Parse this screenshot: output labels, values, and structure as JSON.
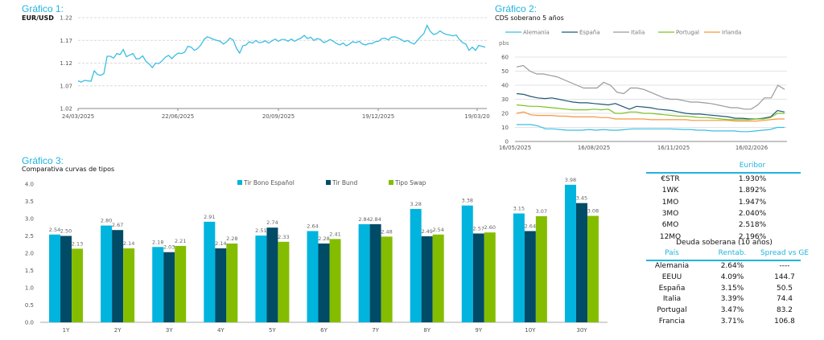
{
  "charts_meta": {
    "g1_title": "Gráfico 1:",
    "g1_subtitle": "EUR/USD",
    "g2_title": "Gráfico 2:",
    "g2_subtitle": "CDS soberano 5 años",
    "g3_title": "Gráfico 3:",
    "g3_subtitle": "Comparativa curvas de tipos"
  },
  "chart_data": [
    {
      "type": "line",
      "title": "EUR/USD",
      "xlabel": "",
      "ylabel": "",
      "ylim": [
        1.02,
        1.22
      ],
      "yticks": [
        "1.02",
        "1.07",
        "1.12",
        "1.17",
        "1.22"
      ],
      "xticks": [
        "24/03/2025",
        "22/06/2025",
        "20/09/2025",
        "19/12/2025",
        "19/03/20"
      ],
      "grid": true,
      "color": "#3bbde3",
      "series": [
        {
          "name": "EUR/USD",
          "x_range": [
            "24/03/2025",
            "25/03/2026"
          ],
          "values": [
            1.081,
            1.078,
            1.082,
            1.081,
            1.08,
            1.103,
            1.095,
            1.093,
            1.097,
            1.135,
            1.135,
            1.131,
            1.141,
            1.139,
            1.15,
            1.134,
            1.138,
            1.141,
            1.129,
            1.13,
            1.136,
            1.124,
            1.118,
            1.11,
            1.12,
            1.119,
            1.125,
            1.133,
            1.137,
            1.13,
            1.137,
            1.142,
            1.141,
            1.144,
            1.157,
            1.155,
            1.148,
            1.152,
            1.16,
            1.172,
            1.178,
            1.175,
            1.172,
            1.17,
            1.168,
            1.162,
            1.167,
            1.175,
            1.171,
            1.153,
            1.142,
            1.158,
            1.16,
            1.167,
            1.164,
            1.17,
            1.165,
            1.166,
            1.169,
            1.164,
            1.169,
            1.173,
            1.168,
            1.172,
            1.172,
            1.168,
            1.173,
            1.168,
            1.172,
            1.175,
            1.181,
            1.174,
            1.177,
            1.17,
            1.174,
            1.172,
            1.165,
            1.168,
            1.172,
            1.168,
            1.163,
            1.16,
            1.164,
            1.158,
            1.162,
            1.167,
            1.165,
            1.168,
            1.162,
            1.16,
            1.163,
            1.163,
            1.167,
            1.168,
            1.174,
            1.175,
            1.171,
            1.177,
            1.178,
            1.175,
            1.172,
            1.167,
            1.17,
            1.165,
            1.162,
            1.17,
            1.178,
            1.185,
            1.203,
            1.19,
            1.183,
            1.185,
            1.191,
            1.186,
            1.183,
            1.182,
            1.18,
            1.182,
            1.172,
            1.165,
            1.162,
            1.148,
            1.155,
            1.148,
            1.159,
            1.157,
            1.155
          ]
        }
      ]
    },
    {
      "type": "line",
      "title": "CDS soberano 5 años",
      "xlabel": "",
      "ylabel": "pbs",
      "ylim": [
        0,
        60
      ],
      "yticks": [
        "0",
        "10",
        "20",
        "30",
        "40",
        "50",
        "60"
      ],
      "xticks": [
        "16/05/2025",
        "16/08/2025",
        "16/11/2025",
        "16/02/2026"
      ],
      "grid": true,
      "legend": "top",
      "series": [
        {
          "name": "Alemania",
          "color": "#3bbde3",
          "values": [
            12,
            12,
            12,
            11,
            9,
            9,
            8.5,
            8,
            8,
            8,
            8.5,
            8,
            8.5,
            8,
            8,
            8.5,
            9,
            9,
            9,
            9,
            9,
            9,
            8.8,
            8.5,
            8.5,
            8,
            8,
            7.5,
            7.5,
            7.5,
            7.5,
            7,
            7,
            7.5,
            8,
            8.5,
            10,
            10
          ]
        },
        {
          "name": "España",
          "color": "#1f5a78",
          "values": [
            34,
            33.5,
            32,
            31,
            30.5,
            31,
            30,
            29,
            28,
            27.5,
            27.5,
            27,
            26.5,
            26,
            27,
            25,
            23,
            25,
            24.5,
            24,
            23,
            22.5,
            22,
            21,
            20,
            19.5,
            19.5,
            19,
            18.5,
            18,
            17.5,
            16.5,
            16.5,
            16,
            16,
            16.5,
            17.5,
            22,
            21
          ]
        },
        {
          "name": "Italia",
          "color": "#9a9a9a",
          "values": [
            53,
            54,
            50,
            48,
            48,
            47,
            46,
            44,
            42,
            40,
            38,
            38,
            38,
            42,
            40,
            35,
            34,
            38,
            38,
            37,
            35,
            33,
            31,
            30,
            30,
            29,
            28,
            28,
            27.5,
            27,
            26,
            25,
            24,
            24,
            23,
            23,
            26,
            31,
            31,
            40,
            37
          ]
        },
        {
          "name": "Portugal",
          "color": "#7cc225",
          "values": [
            26,
            25.5,
            25,
            25,
            24.5,
            24,
            23.5,
            23,
            22.5,
            22.5,
            22.5,
            23,
            22.5,
            23,
            20,
            20,
            21,
            21,
            20,
            20,
            19.5,
            19,
            18.5,
            18,
            18,
            17.5,
            17,
            17,
            16.5,
            16,
            15.5,
            15.5,
            15.5,
            15.5,
            16,
            16,
            17,
            20,
            20
          ]
        },
        {
          "name": "Irlanda",
          "color": "#f7963c",
          "values": [
            20,
            21,
            19,
            18.5,
            18.5,
            18.5,
            18,
            18,
            17.5,
            17.5,
            17.5,
            17.5,
            17,
            17,
            16,
            16,
            16,
            16,
            16,
            15.5,
            15.5,
            15.5,
            15.5,
            15.5,
            15.5,
            15,
            15,
            15,
            15,
            15,
            15,
            14.5,
            14.5,
            14.5,
            14.5,
            15,
            15.5,
            16,
            16
          ]
        }
      ]
    },
    {
      "type": "bar",
      "title": "Comparativa curvas de tipos",
      "xlabel": "",
      "ylabel": "",
      "ylim": [
        0,
        4.0
      ],
      "yticks": [
        "0.0",
        "0.5",
        "1.0",
        "1.5",
        "2.0",
        "2.5",
        "3.0",
        "3.5",
        "4.0"
      ],
      "legend": "top-center",
      "categories": [
        "1Y",
        "2Y",
        "3Y",
        "4Y",
        "5Y",
        "6Y",
        "7Y",
        "8Y",
        "9Y",
        "10Y",
        "30Y"
      ],
      "series": [
        {
          "name": "Tir Bono Español",
          "color": "#00b4de",
          "values": [
            2.54,
            2.8,
            2.18,
            2.91,
            2.51,
            2.64,
            2.84,
            3.28,
            3.38,
            3.15,
            3.98
          ]
        },
        {
          "name": "Tir Bund",
          "color": "#004b66",
          "values": [
            2.5,
            2.67,
            2.03,
            2.14,
            2.74,
            2.28,
            2.84,
            2.49,
            2.57,
            2.64,
            3.45
          ]
        },
        {
          "name": "Tipo Swap",
          "color": "#84bd00",
          "values": [
            2.13,
            2.14,
            2.21,
            2.28,
            2.33,
            2.41,
            2.48,
            2.54,
            2.6,
            3.07,
            3.08
          ]
        }
      ]
    }
  ],
  "euribor": {
    "header": "Euribor",
    "rows": [
      {
        "label": "€STR",
        "value": "1.930%"
      },
      {
        "label": "1WK",
        "value": "1.892%"
      },
      {
        "label": "1MO",
        "value": "1.947%"
      },
      {
        "label": "3MO",
        "value": "2.040%"
      },
      {
        "label": "6MO",
        "value": "2.518%"
      },
      {
        "label": "12MO",
        "value": "2.196%"
      }
    ]
  },
  "deuda": {
    "title": "Deuda soberana (10 años)",
    "headers": [
      "País",
      "Rentab.",
      "Spread vs GE"
    ],
    "rows": [
      {
        "pais": "Alemania",
        "rentab": "2.64%",
        "spread": "----"
      },
      {
        "pais": "EEUU",
        "rentab": "4.09%",
        "spread": "144.7"
      },
      {
        "pais": "España",
        "rentab": "3.15%",
        "spread": "50.5"
      },
      {
        "pais": "Italia",
        "rentab": "3.39%",
        "spread": "74.4"
      },
      {
        "pais": "Portugal",
        "rentab": "3.47%",
        "spread": "83.2"
      },
      {
        "pais": "Francia",
        "rentab": "3.71%",
        "spread": "106.8"
      }
    ]
  }
}
